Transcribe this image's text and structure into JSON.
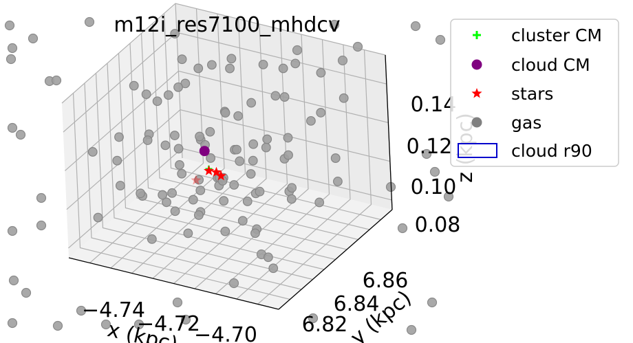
{
  "chart_data": {
    "type": "scatter",
    "title": "m12i_res7100_mhdcv",
    "xlabel": "x (kpc)",
    "ylabel": "y (kpc)",
    "zlabel": "z (kpc)",
    "x_ticks": [
      "−4.74",
      "−4.72",
      "−4.70"
    ],
    "y_ticks": [
      "6.82",
      "6.84",
      "6.86"
    ],
    "z_ticks": [
      "0.08",
      "0.10",
      "0.12",
      "0.14"
    ],
    "xlim": [
      -4.75,
      -4.69
    ],
    "ylim": [
      6.81,
      6.87
    ],
    "zlim": [
      0.075,
      0.155
    ],
    "grid": true,
    "legend_position": "top-right",
    "legend": [
      {
        "label": "cluster CM",
        "marker": "plus",
        "color": "#00ff00"
      },
      {
        "label": "cloud CM",
        "marker": "circle",
        "color": "#800080"
      },
      {
        "label": "stars",
        "marker": "star",
        "color": "#ff0000"
      },
      {
        "label": "gas",
        "marker": "circle",
        "color": "#808080"
      },
      {
        "label": "cloud r90",
        "marker": "rectangle",
        "color": "#0000cc"
      }
    ],
    "series": [
      {
        "name": "cluster CM",
        "points": [
          [
            -4.726,
            6.841,
            0.105
          ]
        ]
      },
      {
        "name": "cloud CM",
        "points": [
          [
            -4.731,
            6.848,
            0.106
          ]
        ]
      },
      {
        "name": "stars",
        "points": [
          [
            -4.726,
            6.841,
            0.104
          ],
          [
            -4.722,
            6.84,
            0.104
          ],
          [
            -4.727,
            6.836,
            0.103
          ],
          [
            -4.725,
            6.843,
            0.102
          ]
        ]
      },
      {
        "name": "gas",
        "points": [
          [
            -4.746,
            6.862,
            0.148
          ],
          [
            -4.742,
            6.858,
            0.14
          ],
          [
            -4.738,
            6.866,
            0.132
          ],
          [
            -4.734,
            6.852,
            0.144
          ],
          [
            -4.73,
            6.861,
            0.138
          ],
          [
            -4.726,
            6.855,
            0.15
          ],
          [
            -4.722,
            6.864,
            0.141
          ],
          [
            -4.718,
            6.85,
            0.135
          ],
          [
            -4.714,
            6.86,
            0.146
          ],
          [
            -4.71,
            6.853,
            0.139
          ],
          [
            -4.706,
            6.865,
            0.143
          ],
          [
            -4.702,
            6.857,
            0.131
          ],
          [
            -4.698,
            6.862,
            0.136
          ],
          [
            -4.744,
            6.848,
            0.126
          ],
          [
            -4.74,
            6.836,
            0.121
          ],
          [
            -4.736,
            6.842,
            0.117
          ],
          [
            -4.732,
            6.83,
            0.124
          ],
          [
            -4.728,
            6.846,
            0.119
          ],
          [
            -4.724,
            6.834,
            0.127
          ],
          [
            -4.72,
            6.844,
            0.115
          ],
          [
            -4.716,
            6.838,
            0.122
          ],
          [
            -4.712,
            6.846,
            0.118
          ],
          [
            -4.708,
            6.832,
            0.125
          ],
          [
            -4.704,
            6.841,
            0.12
          ],
          [
            -4.7,
            6.836,
            0.128
          ],
          [
            -4.745,
            6.828,
            0.112
          ],
          [
            -4.741,
            6.822,
            0.106
          ],
          [
            -4.737,
            6.826,
            0.099
          ],
          [
            -4.733,
            6.818,
            0.109
          ],
          [
            -4.729,
            6.824,
            0.101
          ],
          [
            -4.725,
            6.82,
            0.111
          ],
          [
            -4.721,
            6.827,
            0.097
          ],
          [
            -4.717,
            6.819,
            0.104
          ],
          [
            -4.713,
            6.825,
            0.108
          ],
          [
            -4.709,
            6.818,
            0.1
          ],
          [
            -4.705,
            6.823,
            0.113
          ],
          [
            -4.701,
            6.82,
            0.103
          ],
          [
            -4.743,
            6.856,
            0.095
          ],
          [
            -4.739,
            6.85,
            0.089
          ],
          [
            -4.735,
            6.858,
            0.092
          ],
          [
            -4.731,
            6.854,
            0.087
          ],
          [
            -4.727,
            6.848,
            0.094
          ],
          [
            -4.723,
            6.857,
            0.09
          ],
          [
            -4.719,
            6.852,
            0.086
          ],
          [
            -4.715,
            6.847,
            0.093
          ],
          [
            -4.711,
            6.855,
            0.088
          ],
          [
            -4.707,
            6.849,
            0.091
          ],
          [
            -4.703,
            6.856,
            0.085
          ],
          [
            -4.746,
            6.84,
            0.14
          ],
          [
            -4.738,
            6.832,
            0.146
          ],
          [
            -4.73,
            6.838,
            0.15
          ],
          [
            -4.722,
            6.83,
            0.133
          ],
          [
            -4.714,
            6.836,
            0.142
          ],
          [
            -4.706,
            6.829,
            0.137
          ],
          [
            -4.748,
            6.866,
            0.116
          ],
          [
            -4.744,
            6.814,
            0.129
          ],
          [
            -4.736,
            6.868,
            0.107
          ],
          [
            -4.728,
            6.814,
            0.091
          ],
          [
            -4.72,
            6.866,
            0.124
          ],
          [
            -4.712,
            6.815,
            0.146
          ],
          [
            -4.704,
            6.867,
            0.098
          ],
          [
            -4.696,
            6.83,
            0.118
          ],
          [
            -4.694,
            6.85,
            0.105
          ],
          [
            -4.742,
            6.845,
            0.081
          ],
          [
            -4.734,
            6.837,
            0.083
          ],
          [
            -4.726,
            6.829,
            0.082
          ],
          [
            -4.718,
            6.843,
            0.08
          ],
          [
            -4.71,
            6.835,
            0.084
          ],
          [
            -4.702,
            6.827,
            0.082
          ],
          [
            -4.747,
            6.833,
            0.119
          ],
          [
            -4.733,
            6.863,
            0.112
          ],
          [
            -4.719,
            6.859,
            0.108
          ],
          [
            -4.705,
            6.845,
            0.127
          ],
          [
            -4.727,
            6.838,
            0.096
          ],
          [
            -4.723,
            6.843,
            0.1
          ],
          [
            -4.729,
            6.841,
            0.098
          ],
          [
            -4.721,
            6.837,
            0.102
          ],
          [
            -4.725,
            6.846,
            0.095
          ],
          [
            -4.731,
            6.835,
            0.11
          ],
          [
            -4.717,
            6.841,
            0.113
          ],
          [
            -4.739,
            6.845,
            0.134
          ],
          [
            -4.711,
            6.861,
            0.149
          ],
          [
            -4.697,
            6.843,
            0.141
          ],
          [
            -4.749,
            6.851,
            0.101
          ],
          [
            -4.695,
            6.817,
            0.088
          ],
          [
            -4.745,
            6.817,
            0.092
          ],
          [
            -4.715,
            6.813,
            0.118
          ],
          [
            -4.703,
            6.813,
            0.131
          ]
        ]
      }
    ],
    "background_points": [
      [
        14,
        37
      ],
      [
        48,
        56
      ],
      [
        130,
        32
      ],
      [
        18,
        70
      ],
      [
        16,
        86
      ],
      [
        72,
        118
      ],
      [
        82,
        117
      ],
      [
        18,
        186
      ],
      [
        30,
        196
      ],
      [
        60,
        288
      ],
      [
        60,
        328
      ],
      [
        18,
        336
      ],
      [
        20,
        408
      ],
      [
        38,
        426
      ],
      [
        18,
        470
      ],
      [
        84,
        474
      ],
      [
        118,
        452
      ],
      [
        154,
        472
      ],
      [
        202,
        472
      ],
      [
        258,
        440
      ],
      [
        270,
        465
      ],
      [
        340,
        412
      ],
      [
        380,
        370
      ],
      [
        455,
        463
      ],
      [
        585,
        332
      ],
      [
        568,
        272
      ],
      [
        632,
        250
      ],
      [
        652,
        286
      ],
      [
        620,
        224
      ],
      [
        628,
        440
      ],
      [
        598,
        480
      ],
      [
        604,
        38
      ],
      [
        640,
        58
      ],
      [
        498,
        88
      ],
      [
        432,
        73
      ],
      [
        486,
        36
      ],
      [
        520,
        68
      ]
    ]
  }
}
